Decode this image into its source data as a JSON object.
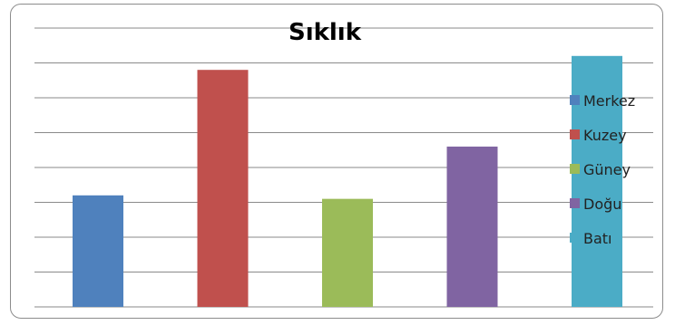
{
  "chart_data": {
    "type": "bar",
    "title": "Sıklık",
    "xlabel": "",
    "ylabel": "",
    "ylim": [
      0,
      8
    ],
    "grid": true,
    "legend": "right",
    "series": [
      {
        "name": "Merkez",
        "values": [
          3.2
        ],
        "color": "#4f81bd"
      },
      {
        "name": "Kuzey",
        "values": [
          6.8
        ],
        "color": "#c0504d"
      },
      {
        "name": "Güney",
        "values": [
          3.1
        ],
        "color": "#9bbb59"
      },
      {
        "name": "Doğu",
        "values": [
          4.6
        ],
        "color": "#8064a2"
      },
      {
        "name": "Batı",
        "values": [
          7.2
        ],
        "color": "#4bacc6"
      }
    ]
  }
}
